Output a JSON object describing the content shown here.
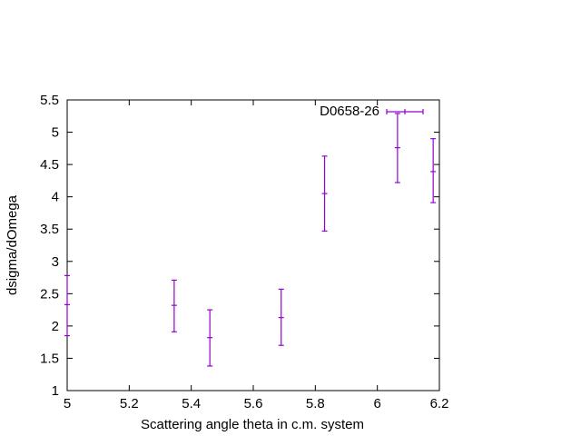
{
  "chart_data": {
    "type": "scatter",
    "title": "",
    "xlabel": "Scattering angle theta in c.m. system",
    "ylabel": "dsigma/dOmega",
    "xlim": [
      5,
      6.2
    ],
    "ylim": [
      1,
      5.5
    ],
    "x_ticks": [
      "5",
      "5.2",
      "5.4",
      "5.6",
      "5.8",
      "6",
      "6.2"
    ],
    "y_ticks": [
      "1",
      "1.5",
      "2",
      "2.5",
      "3",
      "3.5",
      "4",
      "4.5",
      "5",
      "5.5"
    ],
    "grid": false,
    "legend_position": "top-right",
    "series": [
      {
        "name": "D0658-26",
        "color": "#9400d3",
        "error_bars": "y",
        "points": [
          {
            "x": 5.0,
            "y": 2.33,
            "ylow": 1.85,
            "yhigh": 2.78
          },
          {
            "x": 5.345,
            "y": 2.32,
            "ylow": 1.91,
            "yhigh": 2.71
          },
          {
            "x": 5.46,
            "y": 1.82,
            "ylow": 1.38,
            "yhigh": 2.25
          },
          {
            "x": 5.69,
            "y": 2.13,
            "ylow": 1.7,
            "yhigh": 2.57
          },
          {
            "x": 5.83,
            "y": 4.05,
            "ylow": 3.47,
            "yhigh": 4.63
          },
          {
            "x": 6.065,
            "y": 4.76,
            "ylow": 4.22,
            "yhigh": 5.29
          },
          {
            "x": 6.18,
            "y": 4.39,
            "ylow": 3.91,
            "yhigh": 4.9
          }
        ]
      }
    ]
  }
}
